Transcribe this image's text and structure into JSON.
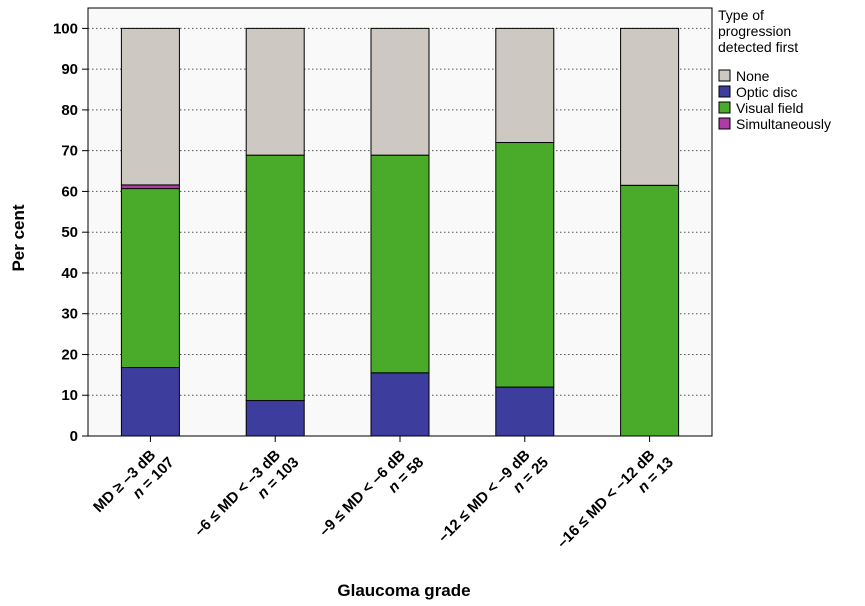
{
  "chart_data": {
    "type": "bar",
    "stacked": true,
    "xlabel": "Glaucoma grade",
    "ylabel": "Per cent",
    "ylim": [
      0,
      105
    ],
    "yticks": [
      0,
      10,
      20,
      30,
      40,
      50,
      60,
      70,
      80,
      90,
      100
    ],
    "grid": "horizontal dotted",
    "legend_position": "right",
    "legend_title": "Type of progression detected first",
    "legend_title_lines": [
      "Type of",
      "progression",
      "detected first"
    ],
    "categories": [
      {
        "label": "MD ≥ –3 dB",
        "n_label": "n = 107"
      },
      {
        "label": "–6 ≤ MD < –3 dB",
        "n_label": "n = 103"
      },
      {
        "label": "–9 ≤ MD < –6 dB",
        "n_label": "n = 58"
      },
      {
        "label": "–12 ≤ MD < –9 dB",
        "n_label": "n = 25"
      },
      {
        "label": "–16 ≤ MD < –12 dB",
        "n_label": "n = 13"
      }
    ],
    "series": [
      {
        "name": "Optic disc",
        "color": "#3d3d9e",
        "values": [
          16.8,
          8.7,
          15.5,
          12.0,
          0.0
        ]
      },
      {
        "name": "Visual field",
        "color": "#4aab2a",
        "values": [
          43.9,
          60.2,
          53.4,
          60.0,
          61.5
        ]
      },
      {
        "name": "Simultaneously",
        "color": "#b03aa6",
        "values": [
          0.9,
          0.0,
          0.0,
          0.0,
          0.0
        ]
      },
      {
        "name": "None",
        "color": "#cdc8c1",
        "values": [
          38.4,
          31.1,
          31.1,
          28.0,
          38.5
        ]
      }
    ],
    "legend_order": [
      "None",
      "Optic disc",
      "Visual field",
      "Simultaneously"
    ]
  }
}
